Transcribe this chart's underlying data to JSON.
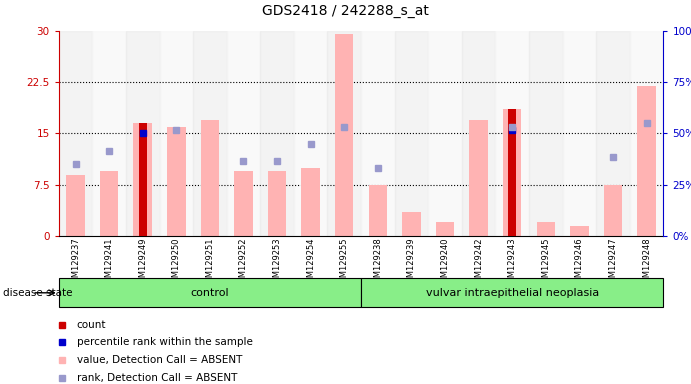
{
  "title": "GDS2418 / 242288_s_at",
  "samples": [
    "GSM129237",
    "GSM129241",
    "GSM129249",
    "GSM129250",
    "GSM129251",
    "GSM129252",
    "GSM129253",
    "GSM129254",
    "GSM129255",
    "GSM129238",
    "GSM129239",
    "GSM129240",
    "GSM129242",
    "GSM129243",
    "GSM129245",
    "GSM129246",
    "GSM129247",
    "GSM129248"
  ],
  "values_absent": [
    9.0,
    9.5,
    16.5,
    16.0,
    17.0,
    9.5,
    9.5,
    10.0,
    29.5,
    7.5,
    3.5,
    2.0,
    17.0,
    18.5,
    2.0,
    1.5,
    7.5,
    22.0
  ],
  "rank_absent": [
    10.5,
    12.5,
    null,
    15.5,
    null,
    11.0,
    11.0,
    13.5,
    16.0,
    10.0,
    null,
    null,
    null,
    16.0,
    null,
    null,
    11.5,
    16.5
  ],
  "count": [
    null,
    null,
    16.5,
    null,
    null,
    null,
    null,
    null,
    null,
    null,
    null,
    null,
    null,
    18.5,
    null,
    null,
    null,
    null
  ],
  "percentile_rank": [
    null,
    null,
    15.0,
    null,
    null,
    null,
    null,
    null,
    null,
    null,
    null,
    null,
    null,
    15.5,
    null,
    null,
    null,
    null
  ],
  "ylim_left": [
    0,
    30
  ],
  "ylim_right": [
    0,
    100
  ],
  "yticks_left": [
    0,
    7.5,
    15,
    22.5,
    30
  ],
  "yticks_right": [
    0,
    25,
    50,
    75,
    100
  ],
  "ytick_labels_left": [
    "0",
    "7.5",
    "15",
    "22.5",
    "30"
  ],
  "ytick_labels_right": [
    "0%",
    "25%",
    "50%",
    "75%",
    "100%"
  ],
  "color_red": "#cc0000",
  "color_blue": "#0000cc",
  "color_pink": "#ffb3b3",
  "color_light_blue": "#9999cc",
  "color_group_bg": "#88ee88",
  "ctrl_count": 9,
  "vin_count": 9,
  "group1_label": "control",
  "group2_label": "vulvar intraepithelial neoplasia",
  "disease_state_label": "disease state"
}
